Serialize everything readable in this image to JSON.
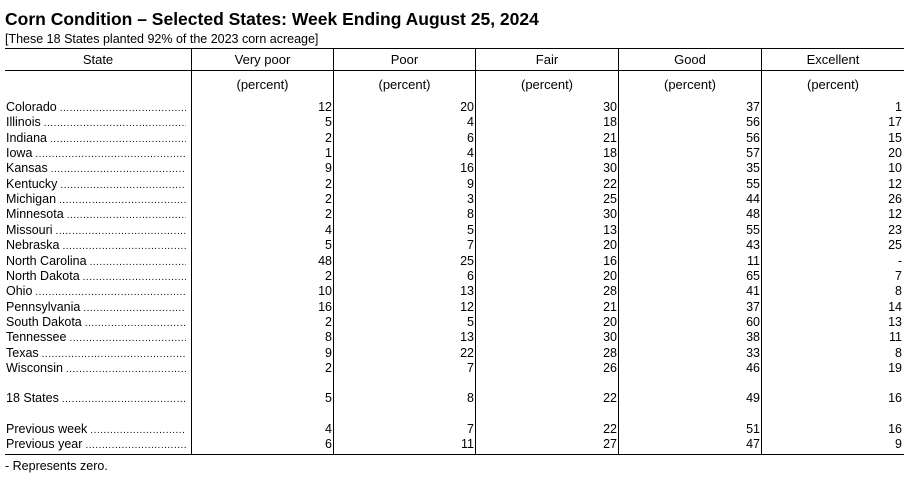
{
  "title": "Corn Condition – Selected States: Week Ending August 25, 2024",
  "subtitle": "[These 18 States planted 92% of the 2023 corn acreage]",
  "columns": {
    "state": "State",
    "very_poor": "Very poor",
    "poor": "Poor",
    "fair": "Fair",
    "good": "Good",
    "excellent": "Excellent"
  },
  "unit_label": "(percent)",
  "states": [
    {
      "name": "Colorado",
      "very_poor": "12",
      "poor": "20",
      "fair": "30",
      "good": "37",
      "excellent": "1"
    },
    {
      "name": "Illinois",
      "very_poor": "5",
      "poor": "4",
      "fair": "18",
      "good": "56",
      "excellent": "17"
    },
    {
      "name": "Indiana",
      "very_poor": "2",
      "poor": "6",
      "fair": "21",
      "good": "56",
      "excellent": "15"
    },
    {
      "name": "Iowa",
      "very_poor": "1",
      "poor": "4",
      "fair": "18",
      "good": "57",
      "excellent": "20"
    },
    {
      "name": "Kansas",
      "very_poor": "9",
      "poor": "16",
      "fair": "30",
      "good": "35",
      "excellent": "10"
    },
    {
      "name": "Kentucky",
      "very_poor": "2",
      "poor": "9",
      "fair": "22",
      "good": "55",
      "excellent": "12"
    },
    {
      "name": "Michigan",
      "very_poor": "2",
      "poor": "3",
      "fair": "25",
      "good": "44",
      "excellent": "26"
    },
    {
      "name": "Minnesota",
      "very_poor": "2",
      "poor": "8",
      "fair": "30",
      "good": "48",
      "excellent": "12"
    },
    {
      "name": "Missouri",
      "very_poor": "4",
      "poor": "5",
      "fair": "13",
      "good": "55",
      "excellent": "23"
    },
    {
      "name": "Nebraska",
      "very_poor": "5",
      "poor": "7",
      "fair": "20",
      "good": "43",
      "excellent": "25"
    },
    {
      "name": "North Carolina",
      "very_poor": "48",
      "poor": "25",
      "fair": "16",
      "good": "11",
      "excellent": "-"
    },
    {
      "name": "North Dakota",
      "very_poor": "2",
      "poor": "6",
      "fair": "20",
      "good": "65",
      "excellent": "7"
    },
    {
      "name": "Ohio",
      "very_poor": "10",
      "poor": "13",
      "fair": "28",
      "good": "41",
      "excellent": "8"
    },
    {
      "name": "Pennsylvania",
      "very_poor": "16",
      "poor": "12",
      "fair": "21",
      "good": "37",
      "excellent": "14"
    },
    {
      "name": "South Dakota",
      "very_poor": "2",
      "poor": "5",
      "fair": "20",
      "good": "60",
      "excellent": "13"
    },
    {
      "name": "Tennessee",
      "very_poor": "8",
      "poor": "13",
      "fair": "30",
      "good": "38",
      "excellent": "11"
    },
    {
      "name": "Texas",
      "very_poor": "9",
      "poor": "22",
      "fair": "28",
      "good": "33",
      "excellent": "8"
    },
    {
      "name": "Wisconsin",
      "very_poor": "2",
      "poor": "7",
      "fair": "26",
      "good": "46",
      "excellent": "19"
    }
  ],
  "summary": [
    {
      "name": "18 States",
      "very_poor": "5",
      "poor": "8",
      "fair": "22",
      "good": "49",
      "excellent": "16"
    },
    {
      "name": "Previous week",
      "very_poor": "4",
      "poor": "7",
      "fair": "22",
      "good": "51",
      "excellent": "16"
    },
    {
      "name": "Previous year",
      "very_poor": "6",
      "poor": "11",
      "fair": "27",
      "good": "47",
      "excellent": "9"
    }
  ],
  "footnote": "- Represents zero."
}
